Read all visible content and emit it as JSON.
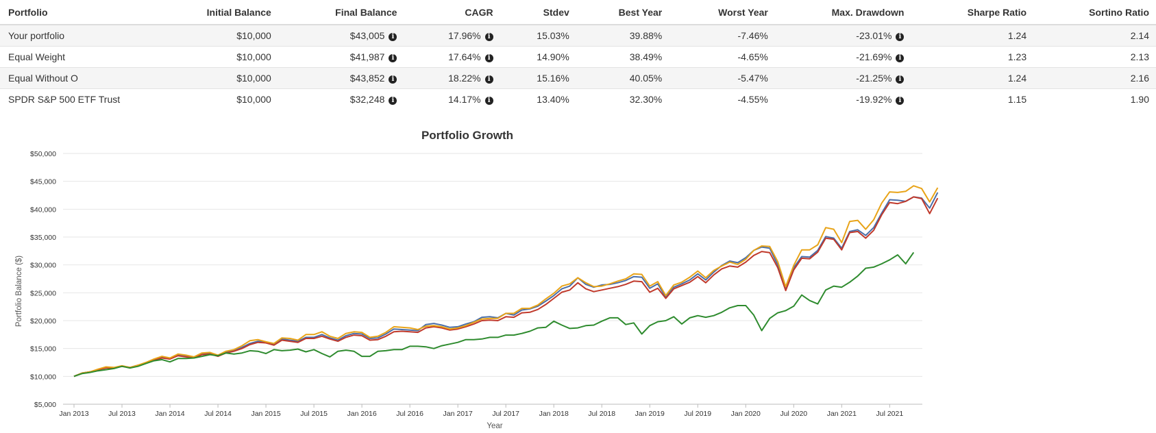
{
  "table": {
    "headers": [
      "Portfolio",
      "Initial Balance",
      "Final Balance",
      "CAGR",
      "Stdev",
      "Best Year",
      "Worst Year",
      "Max. Drawdown",
      "Sharpe Ratio",
      "Sortino Ratio"
    ],
    "rows": [
      {
        "portfolio": "Your portfolio",
        "initial": "$10,000",
        "final": "$43,005",
        "cagr": "17.96%",
        "stdev": "15.03%",
        "best": "39.88%",
        "worst": "-7.46%",
        "drawdown": "-23.01%",
        "sharpe": "1.24",
        "sortino": "2.14"
      },
      {
        "portfolio": "Equal Weight",
        "initial": "$10,000",
        "final": "$41,987",
        "cagr": "17.64%",
        "stdev": "14.90%",
        "best": "38.49%",
        "worst": "-4.65%",
        "drawdown": "-21.69%",
        "sharpe": "1.23",
        "sortino": "2.13"
      },
      {
        "portfolio": "Equal Without O",
        "initial": "$10,000",
        "final": "$43,852",
        "cagr": "18.22%",
        "stdev": "15.16%",
        "best": "40.05%",
        "worst": "-5.47%",
        "drawdown": "-21.25%",
        "sharpe": "1.24",
        "sortino": "2.16"
      },
      {
        "portfolio": "SPDR S&P 500 ETF Trust",
        "initial": "$10,000",
        "final": "$32,248",
        "cagr": "14.17%",
        "stdev": "13.40%",
        "best": "32.30%",
        "worst": "-4.55%",
        "drawdown": "-19.92%",
        "sharpe": "1.15",
        "sortino": "1.90"
      }
    ],
    "info_icon": "info-circle-icon"
  },
  "chart_data": {
    "type": "line",
    "title": "Portfolio Growth",
    "xlabel": "Year",
    "ylabel": "Portfolio Balance ($)",
    "ylim": [
      5000,
      50000
    ],
    "yticks": [
      5000,
      10000,
      15000,
      20000,
      25000,
      30000,
      35000,
      40000,
      45000,
      50000
    ],
    "ytick_labels": [
      "$5,000",
      "$10,000",
      "$15,000",
      "$20,000",
      "$25,000",
      "$30,000",
      "$35,000",
      "$40,000",
      "$45,000",
      "$50,000"
    ],
    "xtick_labels": [
      "Jan 2013",
      "Jul 2013",
      "Jan 2014",
      "Jul 2014",
      "Jan 2015",
      "Jul 2015",
      "Jan 2016",
      "Jul 2016",
      "Jan 2017",
      "Jul 2017",
      "Jan 2018",
      "Jul 2018",
      "Jan 2019",
      "Jul 2019",
      "Jan 2020",
      "Jul 2020",
      "Jan 2021",
      "Jul 2021"
    ],
    "x_start": "Jan 2013",
    "x_end": "Nov 2021",
    "grid": true,
    "legend": "none",
    "x_interval": "monthly",
    "series": [
      {
        "color": "#4a6ea8",
        "values": [
          10000,
          10600,
          10800,
          11200,
          11600,
          11500,
          11800,
          11600,
          12000,
          12400,
          13000,
          13400,
          13200,
          13800,
          13600,
          13400,
          14000,
          14100,
          13700,
          14300,
          14600,
          15200,
          15900,
          16300,
          16200,
          15800,
          16700,
          16500,
          16300,
          17000,
          17000,
          17500,
          16900,
          16500,
          17300,
          17700,
          17600,
          16800,
          16900,
          17600,
          18500,
          18400,
          18300,
          18200,
          19300,
          19500,
          19200,
          18800,
          18900,
          19400,
          19800,
          20600,
          20700,
          20500,
          21300,
          21000,
          21900,
          22100,
          22600,
          23500,
          24500,
          25700,
          26200,
          27700,
          26500,
          26000,
          26400,
          26500,
          26800,
          27200,
          27900,
          27800,
          25800,
          26600,
          24200,
          26000,
          26600,
          27300,
          28400,
          27300,
          28700,
          29900,
          30700,
          30400,
          31300,
          32600,
          33200,
          33000,
          30000,
          25900,
          29500,
          31500,
          31400,
          32600,
          35100,
          34800,
          33000,
          36000,
          36300,
          35300,
          36700,
          39300,
          41700,
          41600,
          41400,
          42200,
          42000,
          40200,
          43005
        ]
      },
      {
        "color": "#c0392b",
        "values": [
          10000,
          10600,
          10800,
          11200,
          11500,
          11500,
          11800,
          11600,
          12000,
          12400,
          12900,
          13300,
          13100,
          13700,
          13500,
          13300,
          13900,
          14000,
          13600,
          14200,
          14500,
          15000,
          15700,
          16100,
          16000,
          15600,
          16500,
          16300,
          16100,
          16800,
          16800,
          17200,
          16700,
          16300,
          17000,
          17400,
          17300,
          16500,
          16600,
          17200,
          18000,
          18100,
          18000,
          17900,
          18700,
          18900,
          18700,
          18300,
          18500,
          18900,
          19400,
          20000,
          20100,
          20000,
          20700,
          20600,
          21400,
          21500,
          22000,
          22900,
          24000,
          25100,
          25500,
          26800,
          25700,
          25200,
          25500,
          25800,
          26100,
          26500,
          27100,
          27000,
          25100,
          25800,
          24000,
          25700,
          26300,
          26900,
          27900,
          26800,
          28200,
          29300,
          29800,
          29600,
          30500,
          31700,
          32400,
          32200,
          29500,
          25400,
          29100,
          31200,
          31100,
          32300,
          34800,
          34600,
          32700,
          35800,
          36000,
          34800,
          36200,
          39000,
          41200,
          41000,
          41400,
          42200,
          41900,
          39200,
          41987
        ]
      },
      {
        "color": "#e8a317",
        "values": [
          10000,
          10600,
          10800,
          11300,
          11700,
          11600,
          11900,
          11600,
          12000,
          12500,
          13100,
          13600,
          13300,
          14000,
          13800,
          13500,
          14200,
          14300,
          13800,
          14500,
          14800,
          15500,
          16400,
          16600,
          16200,
          15900,
          16900,
          16800,
          16500,
          17500,
          17500,
          18000,
          17200,
          16800,
          17700,
          18000,
          17900,
          17000,
          17200,
          17900,
          18900,
          18800,
          18700,
          18400,
          19000,
          19100,
          18900,
          18500,
          18700,
          19100,
          19700,
          20300,
          20400,
          20400,
          21300,
          21300,
          22200,
          22200,
          22800,
          23900,
          24900,
          26200,
          26600,
          27700,
          26800,
          26100,
          26200,
          26600,
          27100,
          27500,
          28400,
          28300,
          26200,
          27000,
          24500,
          26400,
          26900,
          27800,
          28900,
          27700,
          29000,
          29800,
          30500,
          30100,
          31000,
          32600,
          33400,
          33300,
          30600,
          26100,
          29900,
          32700,
          32700,
          33600,
          36700,
          36400,
          34000,
          37800,
          38000,
          36400,
          38100,
          41100,
          43100,
          43000,
          43200,
          44200,
          43700,
          41300,
          43852
        ]
      },
      {
        "color": "#2e8b2e",
        "values": [
          10000,
          10500,
          10700,
          11000,
          11200,
          11400,
          11800,
          11500,
          11800,
          12300,
          12800,
          13000,
          12600,
          13200,
          13200,
          13300,
          13600,
          13900,
          13700,
          14200,
          14000,
          14200,
          14600,
          14500,
          14100,
          14800,
          14600,
          14700,
          14900,
          14400,
          14800,
          14100,
          13500,
          14500,
          14700,
          14500,
          13600,
          13600,
          14500,
          14600,
          14800,
          14800,
          15400,
          15400,
          15300,
          15000,
          15500,
          15800,
          16100,
          16600,
          16600,
          16700,
          17000,
          17000,
          17400,
          17400,
          17700,
          18100,
          18700,
          18800,
          19900,
          19200,
          18600,
          18700,
          19100,
          19200,
          19900,
          20500,
          20500,
          19300,
          19600,
          17600,
          19100,
          19800,
          20000,
          20700,
          19400,
          20500,
          20900,
          20600,
          20900,
          21500,
          22300,
          22700,
          22700,
          21000,
          18200,
          20400,
          21400,
          21800,
          22600,
          24600,
          23600,
          23000,
          25500,
          26200,
          26000,
          26900,
          28000,
          29400,
          29600,
          30200,
          30900,
          31800,
          30200,
          32248
        ]
      }
    ]
  }
}
